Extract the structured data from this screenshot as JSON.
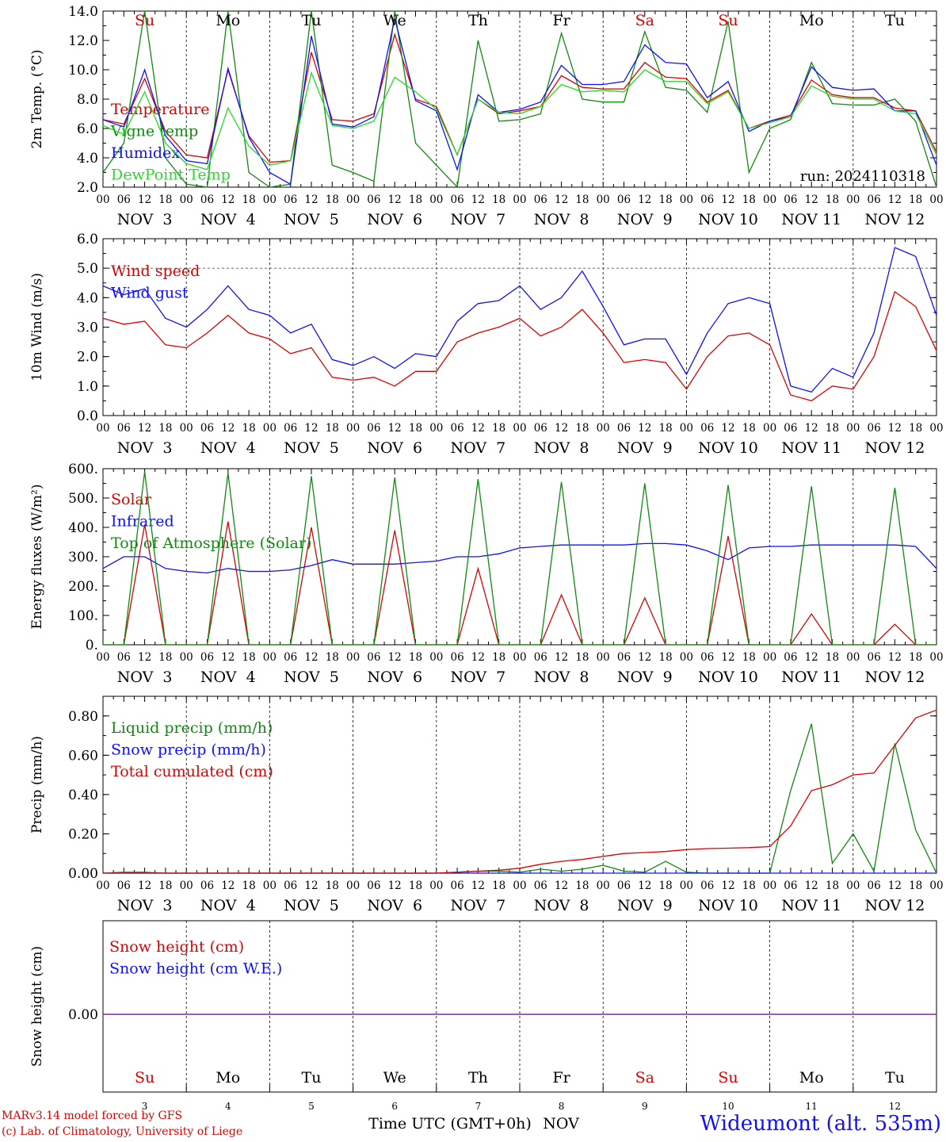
{
  "run_label": "run: 2024110318",
  "x_hour_labels": [
    "00",
    "06",
    "12",
    "18"
  ],
  "day_strip_labels": [
    "NOV  3",
    "NOV  4",
    "NOV  5",
    "NOV  6",
    "NOV  7",
    "NOV  8",
    "NOV  9",
    "NOV 10",
    "NOV 11",
    "NOV 12"
  ],
  "weekdays": [
    {
      "label": "Su",
      "color": "#e00000"
    },
    {
      "label": "Mo",
      "color": "#000000"
    },
    {
      "label": "Tu",
      "color": "#000000"
    },
    {
      "label": "We",
      "color": "#000000"
    },
    {
      "label": "Th",
      "color": "#000000"
    },
    {
      "label": "Fr",
      "color": "#000000"
    },
    {
      "label": "Sa",
      "color": "#e00000"
    },
    {
      "label": "Su",
      "color": "#e00000"
    },
    {
      "label": "Mo",
      "color": "#000000"
    },
    {
      "label": "Tu",
      "color": "#000000"
    }
  ],
  "bottom_day_numbers": [
    "3",
    "4",
    "5",
    "6",
    "7",
    "8",
    "9",
    "10",
    "11",
    "12"
  ],
  "x_axis_title": "Time UTC (GMT+0h)",
  "x_axis_month": "NOV",
  "credit_line1": "MARv3.14 model forced by GFS",
  "credit_line2": "(c) Lab. of Climatology, University of Liege",
  "station": "Wideumont (alt. 535m)",
  "colors": {
    "red": "#e00000",
    "dark_green": "#108a10",
    "blue": "#1010ff",
    "light_green": "#22dd22",
    "purple": "#7a2a9a"
  },
  "chart_data": [
    {
      "type": "line",
      "ylabel": "2m Temp. (°C)",
      "ylim": [
        2,
        14
      ],
      "yticks": [
        "2.0",
        "4.0",
        "6.0",
        "8.0",
        "10.0",
        "12.0",
        "14.0"
      ],
      "x_hours_from_start": [
        0,
        6,
        12,
        18,
        24,
        30,
        36,
        42,
        48,
        54,
        60,
        66,
        72,
        78,
        84,
        90,
        96,
        102,
        108,
        114,
        120,
        126,
        132,
        138,
        144,
        150,
        156,
        162,
        168,
        174,
        180,
        186,
        192,
        198,
        204,
        210,
        216,
        222,
        228,
        234,
        240
      ],
      "series": [
        {
          "name": "Temperature",
          "color": "#e00000",
          "values": [
            6.6,
            6.3,
            9.4,
            5.8,
            4.2,
            4.0,
            10.0,
            5.5,
            3.7,
            3.8,
            11.2,
            6.6,
            6.5,
            7.0,
            12.4,
            8.0,
            7.5,
            4.2,
            8.0,
            7.0,
            7.2,
            7.5,
            9.6,
            8.8,
            8.7,
            8.7,
            10.5,
            9.5,
            9.4,
            7.8,
            8.6,
            6.0,
            6.5,
            6.9,
            9.3,
            8.3,
            8.1,
            8.1,
            7.4,
            7.2,
            4.4
          ]
        },
        {
          "name": "Vigne temp",
          "color": "#108a10",
          "values": [
            3.0,
            5.0,
            14.0,
            4.0,
            2.2,
            1.8,
            14.0,
            3.0,
            1.9,
            2.2,
            14.0,
            3.5,
            3.0,
            2.4,
            14.0,
            5.0,
            3.5,
            2.0,
            12.0,
            6.5,
            6.6,
            7.0,
            12.5,
            8.0,
            7.8,
            7.8,
            12.6,
            8.8,
            8.6,
            7.1,
            13.3,
            3.0,
            6.0,
            6.6,
            10.5,
            7.7,
            7.6,
            7.6,
            8.0,
            6.5,
            2.0
          ]
        },
        {
          "name": "Humidex",
          "color": "#1010ff",
          "values": [
            6.6,
            6.1,
            10.0,
            5.5,
            3.8,
            3.6,
            10.1,
            5.4,
            3.0,
            2.2,
            12.3,
            6.3,
            6.1,
            6.8,
            13.5,
            7.9,
            7.2,
            3.2,
            8.3,
            7.1,
            7.3,
            7.8,
            10.3,
            9.0,
            9.0,
            9.2,
            11.7,
            10.5,
            10.4,
            8.1,
            9.2,
            5.8,
            6.5,
            6.8,
            10.2,
            8.8,
            8.6,
            8.7,
            7.2,
            7.2,
            3.5
          ]
        },
        {
          "name": "DewPoint Temp",
          "color": "#22dd22",
          "values": [
            6.2,
            5.6,
            8.5,
            5.0,
            3.6,
            3.2,
            7.4,
            4.8,
            3.5,
            3.8,
            9.8,
            6.2,
            6.0,
            6.5,
            9.5,
            8.5,
            7.3,
            4.2,
            8.0,
            7.1,
            7.0,
            7.5,
            9.0,
            8.5,
            8.6,
            8.5,
            10.0,
            9.2,
            9.2,
            7.7,
            8.5,
            6.0,
            6.4,
            6.8,
            8.9,
            8.2,
            8.0,
            8.0,
            7.2,
            7.0,
            4.2
          ]
        }
      ]
    },
    {
      "type": "line",
      "ylabel": "10m Wind (m/s)",
      "ylim": [
        0,
        6
      ],
      "yticks": [
        "0.0",
        "1.0",
        "2.0",
        "3.0",
        "4.0",
        "5.0",
        "6.0"
      ],
      "ref_line": 5,
      "x_hours_from_start": [
        0,
        6,
        12,
        18,
        24,
        30,
        36,
        42,
        48,
        54,
        60,
        66,
        72,
        78,
        84,
        90,
        96,
        102,
        108,
        114,
        120,
        126,
        132,
        138,
        144,
        150,
        156,
        162,
        168,
        174,
        180,
        186,
        192,
        198,
        204,
        210,
        216,
        222,
        228,
        234,
        240
      ],
      "series": [
        {
          "name": "Wind speed",
          "color": "#e00000",
          "values": [
            3.3,
            3.1,
            3.2,
            2.4,
            2.3,
            2.8,
            3.4,
            2.8,
            2.6,
            2.1,
            2.3,
            1.3,
            1.2,
            1.3,
            1.0,
            1.5,
            1.5,
            2.5,
            2.8,
            3.0,
            3.3,
            2.7,
            3.0,
            3.6,
            2.8,
            1.8,
            1.9,
            1.8,
            0.9,
            2.0,
            2.7,
            2.8,
            2.4,
            0.7,
            0.5,
            1.0,
            0.9,
            2.0,
            4.2,
            3.7,
            2.2
          ]
        },
        {
          "name": "Wind gust",
          "color": "#1010ff",
          "values": [
            4.4,
            4.1,
            4.3,
            3.3,
            3.0,
            3.6,
            4.4,
            3.6,
            3.4,
            2.8,
            3.1,
            1.9,
            1.7,
            2.0,
            1.6,
            2.1,
            2.0,
            3.2,
            3.8,
            3.9,
            4.4,
            3.6,
            4.0,
            4.9,
            3.7,
            2.4,
            2.6,
            2.6,
            1.4,
            2.8,
            3.8,
            4.0,
            3.8,
            1.0,
            0.8,
            1.6,
            1.3,
            2.8,
            5.7,
            5.4,
            3.4
          ]
        }
      ]
    },
    {
      "type": "line",
      "ylabel": "Energy fluxes (W/m²)",
      "ylim": [
        0,
        600
      ],
      "yticks": [
        "0.",
        "100.",
        "200.",
        "300.",
        "400.",
        "500.",
        "600."
      ],
      "x_hours_from_start": [
        0,
        6,
        12,
        18,
        24,
        30,
        36,
        42,
        48,
        54,
        60,
        66,
        72,
        78,
        84,
        90,
        96,
        102,
        108,
        114,
        120,
        126,
        132,
        138,
        144,
        150,
        156,
        162,
        168,
        174,
        180,
        186,
        192,
        198,
        204,
        210,
        216,
        222,
        228,
        234,
        240
      ],
      "series": [
        {
          "name": "Solar",
          "color": "#e00000",
          "values": [
            0,
            0,
            410,
            0,
            0,
            0,
            420,
            0,
            0,
            0,
            400,
            0,
            0,
            0,
            390,
            0,
            0,
            0,
            260,
            0,
            0,
            0,
            170,
            0,
            0,
            0,
            160,
            0,
            0,
            0,
            370,
            0,
            0,
            0,
            105,
            0,
            0,
            0,
            70,
            0,
            0
          ]
        },
        {
          "name": "Infrared",
          "color": "#1010ff",
          "values": [
            260,
            300,
            300,
            260,
            250,
            245,
            260,
            250,
            250,
            255,
            270,
            290,
            275,
            275,
            275,
            280,
            285,
            300,
            300,
            310,
            330,
            335,
            340,
            340,
            340,
            340,
            345,
            345,
            340,
            320,
            290,
            330,
            335,
            335,
            340,
            340,
            340,
            340,
            340,
            335,
            260
          ]
        },
        {
          "name": "Top of Atmosphere (Solar)",
          "color": "#108a10",
          "values": [
            0,
            0,
            590,
            0,
            0,
            0,
            585,
            0,
            0,
            0,
            575,
            0,
            0,
            0,
            570,
            0,
            0,
            0,
            565,
            0,
            0,
            0,
            555,
            0,
            0,
            0,
            550,
            0,
            0,
            0,
            545,
            0,
            0,
            0,
            540,
            0,
            0,
            0,
            535,
            0,
            0
          ]
        }
      ]
    },
    {
      "type": "line",
      "ylabel": "Precip (mm/h)",
      "ylim": [
        0,
        0.9
      ],
      "yticks": [
        "0.00",
        "0.20",
        "0.40",
        "0.60",
        "0.80"
      ],
      "x_hours_from_start": [
        0,
        6,
        12,
        18,
        24,
        30,
        36,
        42,
        48,
        54,
        60,
        66,
        72,
        78,
        84,
        90,
        96,
        102,
        108,
        114,
        120,
        126,
        132,
        138,
        144,
        150,
        156,
        162,
        168,
        174,
        180,
        186,
        192,
        198,
        204,
        210,
        216,
        222,
        228,
        234,
        240
      ],
      "series": [
        {
          "name": "Liquid precip (mm/h)",
          "color": "#108a10",
          "values": [
            0,
            0.005,
            0.005,
            0,
            0,
            0,
            0,
            0,
            0,
            0,
            0,
            0,
            0,
            0,
            0,
            0,
            0,
            0.005,
            0.01,
            0.01,
            0.005,
            0.02,
            0.01,
            0.02,
            0.04,
            0.01,
            0.005,
            0.06,
            0.005,
            0,
            0,
            0,
            0,
            0.42,
            0.76,
            0.05,
            0.2,
            0.01,
            0.66,
            0.22,
            0
          ]
        },
        {
          "name": "Snow precip (mm/h)",
          "color": "#1010ff",
          "values": [
            0,
            0,
            0,
            0,
            0,
            0,
            0,
            0,
            0,
            0,
            0,
            0,
            0,
            0,
            0,
            0,
            0,
            0,
            0,
            0,
            0,
            0,
            0,
            0,
            0,
            0,
            0,
            0,
            0,
            0,
            0,
            0,
            0,
            0,
            0,
            0,
            0,
            0,
            0,
            0,
            0
          ]
        },
        {
          "name": "Total cumulated (cm)",
          "color": "#e00000",
          "values": [
            0,
            0,
            0,
            0,
            0,
            0,
            0,
            0,
            0,
            0,
            0,
            0,
            0,
            0,
            0,
            0,
            0,
            0.005,
            0.01,
            0.015,
            0.025,
            0.045,
            0.06,
            0.07,
            0.085,
            0.1,
            0.105,
            0.11,
            0.12,
            0.125,
            0.127,
            0.13,
            0.135,
            0.24,
            0.42,
            0.45,
            0.5,
            0.51,
            0.65,
            0.79,
            0.83
          ]
        }
      ]
    },
    {
      "type": "line",
      "ylabel": "Snow height (cm)",
      "yticks": [
        "0.00"
      ],
      "x_hours_from_start": [
        0,
        240
      ],
      "series": [
        {
          "name": "Snow height (cm)",
          "color": "#e00000",
          "values": [
            0,
            0
          ]
        },
        {
          "name": "Snow height (cm W.E.)",
          "color": "#1010ff",
          "values": [
            0,
            0
          ]
        }
      ]
    }
  ]
}
